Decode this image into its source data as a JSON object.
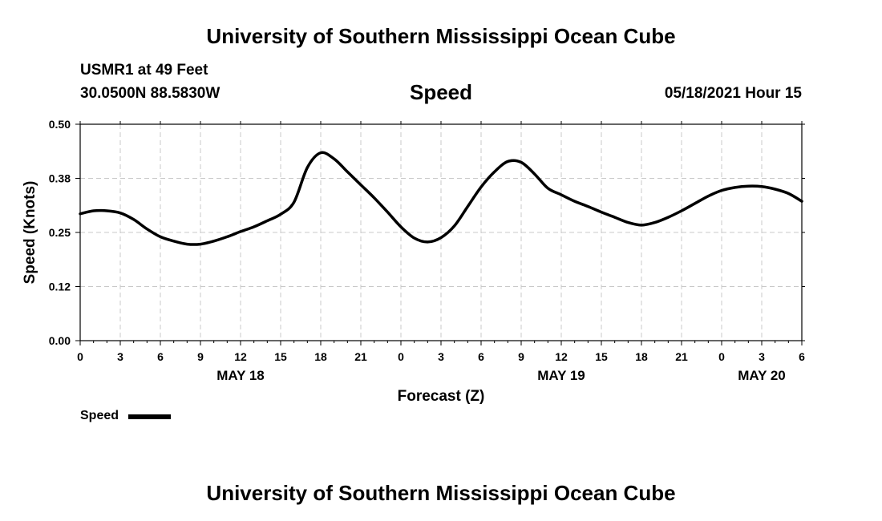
{
  "header": {
    "title_top": "University of Southern Mississippi Ocean Cube",
    "title_bottom": "University of Southern Mississippi Ocean Cube",
    "station": "USMR1 at 49 Feet",
    "coords": "30.0500N  88.5830W",
    "datetime": "05/18/2021 Hour 15"
  },
  "chart_data": {
    "type": "line",
    "title": "Speed",
    "xlabel": "Forecast (Z)",
    "ylabel": "Speed (Knots)",
    "ylim": [
      0,
      0.5
    ],
    "yticks": [
      0.0,
      0.125,
      0.25,
      0.375,
      0.5
    ],
    "ytick_labels": [
      "0.00",
      "0.12",
      "0.25",
      "0.38",
      "0.50"
    ],
    "xlim": [
      0,
      54
    ],
    "xticks": [
      0,
      3,
      6,
      9,
      12,
      15,
      18,
      21,
      24,
      27,
      30,
      33,
      36,
      39,
      42,
      45,
      48,
      51,
      54
    ],
    "xtick_labels": [
      "0",
      "3",
      "6",
      "9",
      "12",
      "15",
      "18",
      "21",
      "0",
      "3",
      "6",
      "9",
      "12",
      "15",
      "18",
      "21",
      "0",
      "3",
      "6"
    ],
    "date_labels": [
      {
        "label": "MAY 18",
        "x": 12
      },
      {
        "label": "MAY 19",
        "x": 36
      },
      {
        "label": "MAY 20",
        "x": 51
      }
    ],
    "grid": true,
    "legend_placement": "bottom-left",
    "color": "#000000",
    "series": [
      {
        "name": "Speed",
        "x": [
          0,
          1,
          2,
          3,
          4,
          5,
          6,
          7,
          8,
          9,
          10,
          11,
          12,
          13,
          14,
          15,
          16,
          17,
          18,
          19,
          20,
          21,
          22,
          23,
          24,
          25,
          26,
          27,
          28,
          29,
          30,
          31,
          32,
          33,
          34,
          35,
          36,
          37,
          38,
          39,
          40,
          41,
          42,
          43,
          44,
          45,
          46,
          47,
          48,
          49,
          50,
          51,
          52,
          53,
          54
        ],
        "values": [
          0.293,
          0.3,
          0.3,
          0.295,
          0.28,
          0.258,
          0.24,
          0.23,
          0.223,
          0.223,
          0.23,
          0.24,
          0.252,
          0.263,
          0.277,
          0.292,
          0.32,
          0.4,
          0.434,
          0.42,
          0.39,
          0.36,
          0.33,
          0.297,
          0.263,
          0.237,
          0.228,
          0.238,
          0.265,
          0.31,
          0.355,
          0.39,
          0.414,
          0.412,
          0.385,
          0.352,
          0.337,
          0.322,
          0.31,
          0.297,
          0.285,
          0.273,
          0.267,
          0.273,
          0.285,
          0.3,
          0.317,
          0.334,
          0.347,
          0.354,
          0.357,
          0.356,
          0.35,
          0.34,
          0.322
        ]
      }
    ]
  },
  "legend": {
    "label": "Speed"
  }
}
